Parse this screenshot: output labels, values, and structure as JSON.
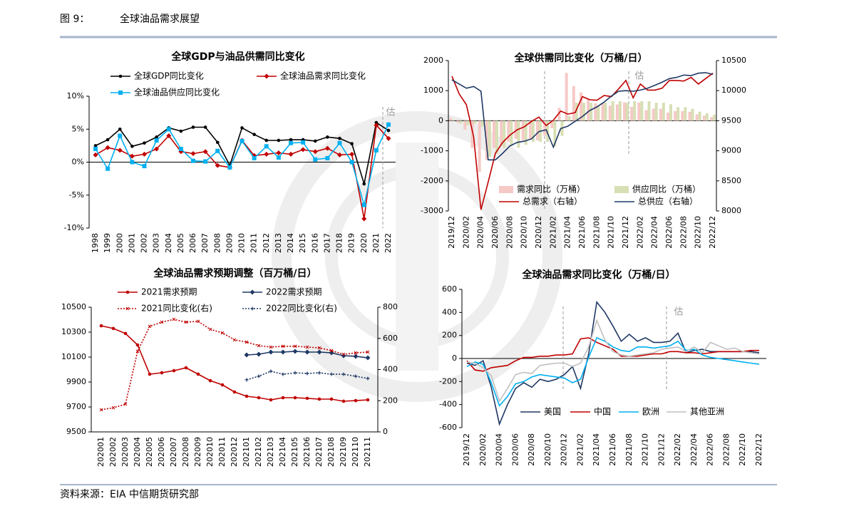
{
  "header": {
    "figure_label": "图 9：",
    "title": "全球油品需求展望"
  },
  "source": "资料来源：EIA 中信期货研究部",
  "chart_data": [
    {
      "type": "line",
      "title": "全球GDP与油品供需同比变化",
      "annotation": "估",
      "categories": [
        "1998",
        "1999",
        "2000",
        "2001",
        "2002",
        "2003",
        "2004",
        "2005",
        "2006",
        "2007",
        "2008",
        "2009",
        "2010",
        "2011",
        "2012",
        "2013",
        "2014",
        "2015",
        "2016",
        "2017",
        "2018",
        "2019",
        "2020",
        "2021",
        "2022"
      ],
      "ylim": [
        -10,
        10
      ],
      "yticks": [
        {
          "value": -10,
          "label": "-10%"
        },
        {
          "value": -5,
          "label": "-5%"
        },
        {
          "value": 0,
          "label": "0%"
        },
        {
          "value": 5,
          "label": "5%"
        },
        {
          "value": 10,
          "label": "10%"
        }
      ],
      "grid": false,
      "series": [
        {
          "name": "全球GDP同比变化",
          "color": "#000000",
          "marker": "circle",
          "values": [
            2.5,
            3.4,
            5.0,
            2.4,
            2.9,
            3.8,
            5.2,
            4.7,
            5.3,
            5.3,
            3.0,
            -0.5,
            5.2,
            4.2,
            3.3,
            3.3,
            3.4,
            3.4,
            3.2,
            3.8,
            3.6,
            2.8,
            -3.3,
            6.0,
            4.8
          ]
        },
        {
          "name": "全球油品需求同比变化",
          "color": "#c00000",
          "marker": "diamond",
          "values": [
            1.1,
            2.2,
            1.8,
            0.9,
            1.2,
            2.0,
            4.0,
            1.6,
            1.3,
            1.6,
            -0.5,
            -0.8,
            3.3,
            1.0,
            1.2,
            1.4,
            1.2,
            1.9,
            1.6,
            2.1,
            1.1,
            1.2,
            -8.6,
            5.6,
            3.6
          ]
        },
        {
          "name": "全球油品供应同比变化",
          "color": "#00b0f0",
          "marker": "square",
          "values": [
            2.0,
            -1.0,
            4.0,
            0.0,
            -0.6,
            3.3,
            5.0,
            2.0,
            0.2,
            0.1,
            1.7,
            -0.8,
            3.2,
            0.6,
            2.4,
            0.7,
            2.9,
            3.0,
            0.4,
            0.6,
            2.9,
            0.0,
            -6.5,
            1.8,
            5.7
          ]
        }
      ]
    },
    {
      "type": "combo",
      "title": "全球供需同比变化（万桶/日）",
      "annotation": "估",
      "categories": [
        "2019/12",
        null,
        "2020/02",
        null,
        "2020/04",
        null,
        "2020/06",
        null,
        "2020/08",
        null,
        "2020/10",
        null,
        "2020/12",
        null,
        "2021/02",
        null,
        "2021/04",
        null,
        "2021/06",
        null,
        "2021/08",
        null,
        "2021/10",
        null,
        "2021/12",
        null,
        "2022/02",
        null,
        "2022/04",
        null,
        "2022/06",
        null,
        "2022/08",
        null,
        "2022/10",
        null,
        "2022/12"
      ],
      "ylim": [
        -3000,
        2000
      ],
      "yticks": [
        -3000,
        -2000,
        -1000,
        0,
        1000,
        2000
      ],
      "y2lim": [
        8000,
        10500
      ],
      "y2ticks": [
        8000,
        8500,
        9000,
        9500,
        10000,
        10500
      ],
      "grid": false,
      "series": [
        {
          "name": "需求同比（万桶）",
          "type": "bar",
          "color": "#f6c9c6",
          "values": [
            80,
            -60,
            -300,
            -900,
            -1700,
            -1300,
            -900,
            -800,
            -700,
            -600,
            -650,
            -600,
            -650,
            -500,
            -250,
            430,
            1590,
            1150,
            940,
            710,
            580,
            570,
            500,
            540,
            610,
            460,
            600,
            350,
            400,
            400,
            270,
            320,
            320,
            300,
            210,
            170,
            120
          ]
        },
        {
          "name": "供应同比（万桶）",
          "type": "bar",
          "color": "#d7dfb4",
          "values": [
            40,
            -100,
            -150,
            -100,
            -200,
            -1200,
            -1100,
            -900,
            -850,
            -900,
            -800,
            -700,
            -700,
            -700,
            -850,
            -500,
            150,
            600,
            600,
            600,
            500,
            600,
            650,
            650,
            600,
            650,
            650,
            650,
            600,
            600,
            550,
            450,
            450,
            400,
            300,
            250,
            200
          ]
        },
        {
          "name": "总需求（右轴）",
          "type": "line",
          "axis": "y2",
          "color": "#c00000",
          "marker": "none",
          "values": [
            10240,
            9945,
            9765,
            9230,
            8020,
            8480,
            8960,
            9140,
            9260,
            9350,
            9400,
            9490,
            9560,
            9420,
            9510,
            9660,
            9610,
            9635,
            9900,
            9850,
            9840,
            9920,
            9900,
            10030,
            10170,
            9880,
            10110,
            10010,
            10010,
            10040,
            10170,
            10170,
            10160,
            10220,
            10110,
            10200,
            10290
          ]
        },
        {
          "name": "总供应（右轴）",
          "type": "line",
          "axis": "y2",
          "color": "#1f3864",
          "marker": "none",
          "values": [
            10180,
            10110,
            10040,
            10070,
            9990,
            8850,
            8850,
            8960,
            9080,
            9140,
            9160,
            9200,
            9320,
            9350,
            9060,
            9370,
            9410,
            9490,
            9570,
            9670,
            9730,
            9810,
            9910,
            9990,
            10000,
            9990,
            10010,
            10040,
            10090,
            10140,
            10200,
            10220,
            10260,
            10250,
            10290,
            10300,
            10270
          ]
        }
      ]
    },
    {
      "type": "line",
      "title": "全球油品需求预期调整（百万桶/日）",
      "categories": [
        "202001",
        "202002",
        "202003",
        "202004",
        "202005",
        "202006",
        "202007",
        "202008",
        "202009",
        "202010",
        "202011",
        "202012",
        "202101",
        "202102",
        "202103",
        "202104",
        "202105",
        "202106",
        "202107",
        "202108",
        "202109",
        "202110",
        "202111"
      ],
      "ylim": [
        9500,
        10500
      ],
      "yticks": [
        9500,
        9700,
        9900,
        10100,
        10300,
        10500
      ],
      "y2lim": [
        0,
        800
      ],
      "y2ticks": [
        0,
        200,
        400,
        600,
        800
      ],
      "grid": false,
      "series": [
        {
          "name": "2021需求预期",
          "color": "#c00000",
          "marker": "circle",
          "values": [
            10351,
            10329,
            10289,
            10197,
            9963,
            9974,
            9991,
            10014,
            9963,
            9911,
            9877,
            9820,
            9786,
            9774,
            9757,
            9774,
            9774,
            9769,
            9763,
            9763,
            9746,
            9751,
            9757
          ]
        },
        {
          "name": "2022需求预期",
          "color": "#1f3864",
          "marker": "diamond",
          "values": [
            null,
            null,
            null,
            null,
            null,
            null,
            null,
            null,
            null,
            null,
            null,
            null,
            10117,
            10123,
            10140,
            10140,
            10146,
            10140,
            10140,
            10134,
            10111,
            10106,
            10094
          ]
        },
        {
          "name": "2021同比变化(右)",
          "axis": "y2",
          "color": "#c00000",
          "marker": "x",
          "dash": "dotted",
          "values": [
            142,
            155,
            178,
            517,
            677,
            704,
            722,
            704,
            709,
            658,
            635,
            590,
            576,
            553,
            544,
            549,
            549,
            544,
            539,
            521,
            498,
            507,
            512
          ]
        },
        {
          "name": "2022同比变化(右)",
          "axis": "y2",
          "color": "#1f3864",
          "marker": "plus",
          "dash": "dotted",
          "values": [
            null,
            null,
            null,
            null,
            null,
            null,
            null,
            null,
            null,
            null,
            null,
            null,
            334,
            357,
            389,
            370,
            379,
            375,
            379,
            370,
            370,
            357,
            343
          ]
        }
      ]
    },
    {
      "type": "line",
      "title": "全球油品需求同比变化（万桶/日）",
      "annotation": "估",
      "categories": [
        "2019/12",
        null,
        "2020/02",
        null,
        "2020/04",
        null,
        "2020/06",
        null,
        "2020/08",
        null,
        "2020/10",
        null,
        "2020/12",
        null,
        "2021/02",
        null,
        "2021/04",
        null,
        "2021/06",
        null,
        "2021/08",
        null,
        "2021/10",
        null,
        "2021/12",
        null,
        "2022/02",
        null,
        "2022/04",
        null,
        "2022/06",
        null,
        "2022/08",
        null,
        "2022/10",
        null,
        "2022/12"
      ],
      "ylim": [
        -600,
        600
      ],
      "yticks": [
        -600,
        -400,
        -200,
        0,
        200,
        400,
        600
      ],
      "grid": false,
      "series": [
        {
          "name": "美国",
          "color": "#1f3864",
          "marker": "none",
          "values": [
            -40,
            -60,
            -20,
            -250,
            -570,
            -400,
            -260,
            -210,
            -250,
            -180,
            -200,
            -180,
            -140,
            -70,
            -260,
            40,
            490,
            400,
            280,
            150,
            210,
            150,
            180,
            140,
            140,
            150,
            220,
            50,
            70,
            80,
            60,
            60,
            60,
            60,
            60,
            60,
            50
          ]
        },
        {
          "name": "中国",
          "color": "#c00000",
          "marker": "none",
          "values": [
            -20,
            -100,
            -110,
            -80,
            -70,
            -60,
            -20,
            10,
            10,
            20,
            20,
            30,
            30,
            40,
            170,
            180,
            140,
            110,
            80,
            20,
            20,
            20,
            30,
            40,
            40,
            60,
            60,
            50,
            50,
            40,
            50,
            60,
            60,
            60,
            60,
            70,
            70
          ]
        },
        {
          "name": "欧洲",
          "color": "#00b0f0",
          "marker": "none",
          "values": [
            -70,
            -30,
            -50,
            -210,
            -410,
            -330,
            -220,
            -200,
            -160,
            -140,
            -150,
            -160,
            -170,
            -210,
            -180,
            10,
            180,
            150,
            100,
            70,
            60,
            100,
            100,
            90,
            100,
            110,
            150,
            70,
            80,
            30,
            10,
            0,
            -10,
            -20,
            -30,
            -40,
            -50
          ]
        },
        {
          "name": "其他亚洲",
          "color": "#bfbfbf",
          "marker": "none",
          "values": [
            -30,
            -40,
            -80,
            -150,
            -370,
            -260,
            -140,
            -120,
            -130,
            -60,
            -50,
            -40,
            -40,
            -70,
            -40,
            100,
            330,
            160,
            60,
            30,
            20,
            30,
            40,
            50,
            80,
            90,
            100,
            60,
            100,
            50,
            140,
            110,
            80,
            90,
            60,
            50,
            40
          ]
        }
      ]
    }
  ]
}
